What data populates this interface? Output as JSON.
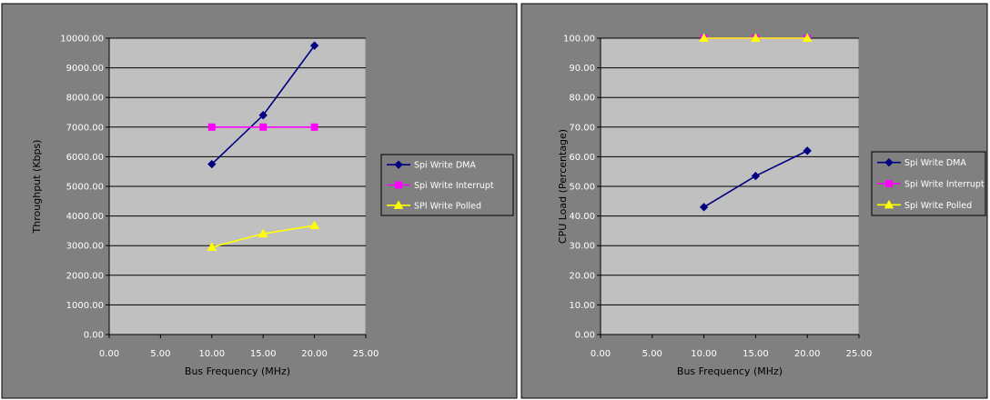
{
  "chart_data": [
    {
      "type": "line",
      "xlabel": "Bus Frequency (MHz)",
      "ylabel": "Throughput (Kbps)",
      "xlim": [
        0,
        25
      ],
      "ylim": [
        0,
        10000
      ],
      "x_ticks": [
        "0.00",
        "5.00",
        "10.00",
        "15.00",
        "20.00",
        "25.00"
      ],
      "y_ticks": [
        "0.00",
        "1000.00",
        "2000.00",
        "3000.00",
        "4000.00",
        "5000.00",
        "6000.00",
        "7000.00",
        "8000.00",
        "9000.00",
        "10000.00"
      ],
      "grid": "horizontal",
      "legend_position": "right",
      "series": [
        {
          "name": "Spi Write DMA",
          "color": "#000080",
          "marker": "diamond",
          "x": [
            10,
            15,
            20
          ],
          "y": [
            5750,
            7400,
            9750
          ]
        },
        {
          "name": "Spi Write Interrupt",
          "color": "#FF00FF",
          "marker": "square",
          "x": [
            10,
            15,
            20
          ],
          "y": [
            7000,
            7000,
            7000
          ]
        },
        {
          "name": "SPI Write Polled",
          "color": "#FFFF00",
          "marker": "triangle",
          "x": [
            10,
            15,
            20
          ],
          "y": [
            2950,
            3400,
            3680
          ]
        }
      ]
    },
    {
      "type": "line",
      "xlabel": "Bus Frequency (MHz)",
      "ylabel": "CPU Load (Percentage)",
      "xlim": [
        0,
        25
      ],
      "ylim": [
        0,
        100
      ],
      "x_ticks": [
        "0.00",
        "5.00",
        "10.00",
        "15.00",
        "20.00",
        "25.00"
      ],
      "y_ticks": [
        "0.00",
        "10.00",
        "20.00",
        "30.00",
        "40.00",
        "50.00",
        "60.00",
        "70.00",
        "80.00",
        "90.00",
        "100.00"
      ],
      "grid": "horizontal",
      "legend_position": "right",
      "series": [
        {
          "name": "Spi Write DMA",
          "color": "#000080",
          "marker": "diamond",
          "x": [
            10,
            15,
            20
          ],
          "y": [
            43,
            53.5,
            62
          ]
        },
        {
          "name": "Spi Write Interrupt",
          "color": "#FF00FF",
          "marker": "square",
          "x": [
            10,
            15,
            20
          ],
          "y": [
            100,
            100,
            100
          ]
        },
        {
          "name": "Spi Write Polled",
          "color": "#FFFF00",
          "marker": "triangle",
          "x": [
            10,
            15,
            20
          ],
          "y": [
            100,
            100,
            100
          ]
        }
      ]
    }
  ]
}
